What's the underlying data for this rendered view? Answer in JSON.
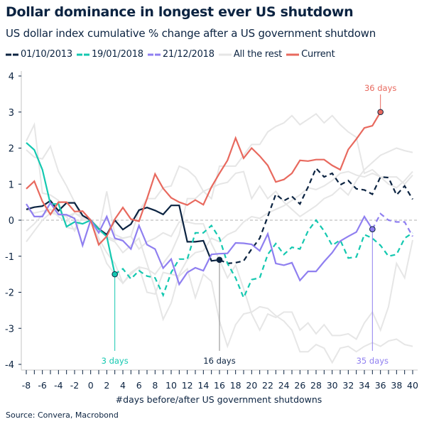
{
  "chart_data": {
    "type": "line",
    "title": "Dollar dominance in longest ever US shutdown",
    "subtitle": "US dollar index cumulative % change after a US government shutdown",
    "xlabel": "#days before/after US government shutdowns",
    "ylabel": "",
    "xlim": [
      -8,
      40
    ],
    "ylim": [
      -4,
      4
    ],
    "x_ticks": [
      -8,
      -6,
      -4,
      -2,
      0,
      2,
      4,
      6,
      8,
      10,
      12,
      14,
      16,
      18,
      20,
      22,
      24,
      26,
      28,
      30,
      32,
      34,
      36,
      38,
      40
    ],
    "y_ticks": [
      4,
      3,
      2,
      1,
      0,
      -1,
      -2,
      -3,
      -4
    ],
    "zero_line": "dashed",
    "legend_position": "top",
    "x": [
      -8,
      -7,
      -6,
      -5,
      -4,
      -3,
      -2,
      -1,
      0,
      1,
      2,
      3,
      4,
      5,
      6,
      7,
      8,
      9,
      10,
      11,
      12,
      13,
      14,
      15,
      16,
      17,
      18,
      19,
      20,
      21,
      22,
      23,
      24,
      25,
      26,
      27,
      28,
      29,
      30,
      31,
      32,
      33,
      34,
      35,
      36,
      37,
      38,
      39,
      40
    ],
    "series": [
      {
        "name": "All the rest",
        "color": "#e6e6e6",
        "values": [
          2.2,
          2.65,
          0.75,
          0.7,
          0.55,
          -0.2,
          -0.25,
          0.1,
          0,
          -0.3,
          -0.45,
          -0.55,
          -0.5,
          -0.45,
          0.25,
          0.6,
          0.6,
          0.9,
          0.95,
          1.5,
          1.4,
          1.2,
          0.8,
          0.6,
          1.5,
          1.5,
          1.5,
          1.8,
          2.1,
          2.1,
          2.45,
          2.6,
          2.7,
          2.9,
          2.65,
          2.8,
          2.95,
          2.7,
          2.9,
          2.65,
          2.45,
          2.3,
          1.3,
          1.4,
          1.2,
          1.2,
          1.2,
          1.0,
          1.25
        ]
      },
      {
        "name": "All the rest",
        "color": "#e6e6e6",
        "values": [
          1.95,
          1.75,
          1.7,
          2.05,
          1.35,
          0.95,
          0.5,
          0.0,
          0,
          -0.5,
          -0.9,
          -1.2,
          -1.75,
          -1.5,
          -1.3,
          -1.35,
          -1.5,
          -1.2,
          -0.9,
          -0.4,
          0.6,
          0.6,
          0.8,
          0.9,
          1.0,
          1.05,
          1.3,
          1.35,
          0.6,
          0.95,
          0.6,
          0.8,
          0.5,
          0.3,
          0.1,
          0.25,
          0.4,
          0.6,
          0.7,
          0.9,
          0.7,
          1.1,
          1.4,
          1.6,
          1.8,
          1.9,
          2.0,
          1.93,
          1.88
        ]
      },
      {
        "name": "All the rest",
        "color": "#e6e6e6",
        "values": [
          -0.6,
          -0.3,
          0.0,
          0.2,
          0.15,
          0.1,
          -0.3,
          0.1,
          0,
          -0.6,
          -1.2,
          -1.5,
          -1.75,
          -1.45,
          -1.3,
          -2.0,
          -2.05,
          -1.45,
          -1.5,
          -1.55,
          -1.35,
          -2.15,
          -1.5,
          -1.7,
          -2.8,
          -3.5,
          -2.9,
          -2.6,
          -2.55,
          -2.4,
          -2.45,
          -2.65,
          -2.8,
          -3.05,
          -3.65,
          -3.65,
          -3.45,
          -3.55,
          -3.95,
          -3.55,
          -3.5,
          -3.65,
          -3.5,
          -3.4,
          -3.5,
          -3.35,
          -3.3,
          -3.45,
          -3.5
        ]
      },
      {
        "name": "All the rest",
        "color": "#e6e6e6",
        "values": [
          -0.3,
          -0.1,
          0.15,
          0.3,
          0.1,
          -0.05,
          0.2,
          0.1,
          0,
          -0.3,
          0.8,
          -0.4,
          -0.5,
          -0.45,
          -0.8,
          -0.6,
          -0.5,
          -0.35,
          -0.45,
          -0.05,
          -0.05,
          -0.1,
          -0.1,
          -0.65,
          -1.1,
          -1.6,
          -1.25,
          -1.9,
          -2.6,
          -3.05,
          -2.6,
          -2.7,
          -2.55,
          -2.55,
          -3.05,
          -2.85,
          -3.15,
          -2.9,
          -3.2,
          -3.2,
          -3.15,
          -3.3,
          -2.85,
          -2.55,
          -3.05,
          -2.4,
          -1.2,
          -1.6,
          -0.55
        ]
      },
      {
        "name": "All the rest",
        "color": "#e6e6e6",
        "values": [
          0.3,
          0.2,
          0.25,
          0.3,
          0.2,
          0.1,
          0.2,
          0.05,
          0,
          -0.2,
          -0.5,
          -0.6,
          -0.9,
          -0.7,
          -0.5,
          -1.2,
          -1.9,
          -2.75,
          -2.3,
          -1.5,
          -1.1,
          -0.9,
          -0.85,
          -0.5,
          -0.6,
          -0.4,
          -0.3,
          -0.05,
          0.1,
          0.05,
          0.2,
          0.3,
          0.4,
          0.55,
          0.7,
          0.9,
          0.85,
          0.95,
          1.1,
          1.3,
          1.35,
          1.25,
          1.2,
          1.3,
          1.2,
          1.0,
          0.9,
          1.1,
          1.35
        ]
      },
      {
        "name": "01/10/2013",
        "color": "#0b2341",
        "marker_day": 16,
        "marker_label": "16 days",
        "values": [
          0.3,
          0.36,
          0.39,
          0.54,
          0.26,
          0.48,
          0.48,
          0.13,
          0,
          -0.24,
          -0.4,
          0,
          -0.26,
          -0.11,
          0.28,
          0.35,
          0.27,
          0.16,
          0.41,
          0.41,
          -0.6,
          -0.6,
          -0.57,
          -1.13,
          -1.1,
          -1.2,
          -1.18,
          -1.13,
          -0.8,
          -0.5,
          0.1,
          0.72,
          0.54,
          0.66,
          0.45,
          0.92,
          1.44,
          1.2,
          1.3,
          0.98,
          1.1,
          0.87,
          0.84,
          0.72,
          1.2,
          1.18,
          0.7,
          0.95,
          0.58
        ]
      },
      {
        "name": "19/01/2018",
        "color": "#14c8b0",
        "marker_day": 3,
        "marker_label": "3 days",
        "values": [
          2.15,
          1.95,
          1.4,
          0.45,
          0.45,
          -0.18,
          -0.05,
          -0.1,
          0,
          -0.25,
          -0.45,
          -1.5,
          -1.35,
          -1.63,
          -1.4,
          -1.55,
          -1.6,
          -2.08,
          -1.45,
          -1.08,
          -1.08,
          -0.35,
          -0.35,
          -0.15,
          -0.5,
          -1.2,
          -1.6,
          -2.15,
          -1.65,
          -1.6,
          -0.95,
          -0.65,
          -0.95,
          -0.75,
          -0.8,
          -0.3,
          0,
          -0.3,
          -0.7,
          -0.55,
          -1.05,
          -1.02,
          -0.4,
          -0.5,
          -0.7,
          -1.0,
          -0.95,
          -0.5,
          -0.35
        ]
      },
      {
        "name": "21/12/2018",
        "color": "#8f7ff0",
        "marker_day": 35,
        "marker_label": "35 days",
        "values": [
          0.45,
          0.1,
          0.1,
          0.48,
          0.16,
          0.15,
          0.05,
          -0.7,
          0,
          -0.35,
          0.1,
          -0.5,
          -0.57,
          -0.8,
          -0.15,
          -0.68,
          -0.8,
          -1.33,
          -1.08,
          -1.78,
          -1.45,
          -1.32,
          -1.4,
          -0.95,
          -0.93,
          -0.92,
          -0.63,
          -0.64,
          -0.67,
          -0.85,
          -0.38,
          -1.2,
          -1.25,
          -1.18,
          -1.67,
          -1.42,
          -1.42,
          -1.15,
          -0.9,
          -0.58,
          -0.45,
          -0.33,
          0.1,
          -0.25,
          0.18,
          0,
          -0.05,
          -0.05,
          -0.45
        ]
      },
      {
        "name": "Current",
        "color": "#e8695e",
        "marker_day": 36,
        "marker_label": "36 days",
        "values": [
          0.87,
          1.08,
          0.52,
          0.16,
          0.5,
          0.5,
          0.24,
          0.25,
          0,
          -0.68,
          -0.45,
          0.03,
          0.35,
          0.03,
          -0.03,
          0.6,
          1.28,
          0.88,
          0.62,
          0.5,
          0.42,
          0.56,
          0.43,
          0.92,
          1.3,
          1.66,
          2.28,
          1.72,
          2.0,
          1.78,
          1.52,
          1.06,
          1.13,
          1.3,
          1.66,
          1.64,
          1.68,
          1.68,
          1.52,
          1.4,
          1.96,
          2.25,
          2.56,
          2.62,
          3.0,
          null,
          null,
          null,
          null
        ]
      }
    ],
    "legend": [
      {
        "label": "01/10/2013",
        "color": "#0b2341",
        "style": "dashed"
      },
      {
        "label": "19/01/2018",
        "color": "#14c8b0",
        "style": "dashed"
      },
      {
        "label": "21/12/2018",
        "color": "#8f7ff0",
        "style": "dashed"
      },
      {
        "label": "All the rest",
        "color": "#e6e6e6",
        "style": "solid"
      },
      {
        "label": "Current",
        "color": "#e8695e",
        "style": "solid"
      }
    ],
    "source": "Source: Convera, Macrobond"
  }
}
